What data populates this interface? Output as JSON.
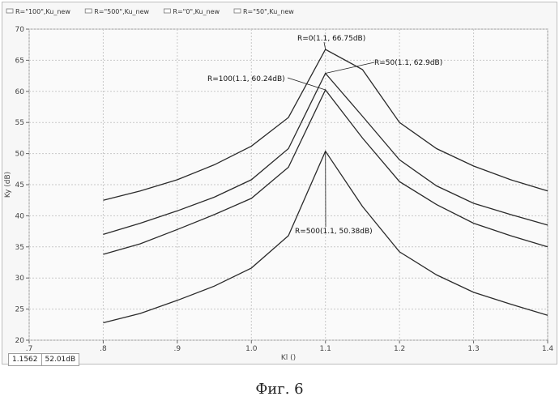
{
  "chart_data": {
    "type": "line",
    "xlabel": "Kl ()",
    "ylabel": "Ky (dB)",
    "xlim": [
      0.7,
      1.4
    ],
    "ylim": [
      20,
      70
    ],
    "x_ticks": [
      ".7",
      ".8",
      ".9",
      "1.0",
      "1.1",
      "1.2",
      "1.3",
      "1.4"
    ],
    "y_ticks": [
      "20",
      "25",
      "30",
      "35",
      "40",
      "45",
      "50",
      "55",
      "60",
      "65",
      "70"
    ],
    "grid": true,
    "legend_position": "top",
    "series": [
      {
        "name": "R=\"100\",Ku_new",
        "x": [
          0.8,
          0.85,
          0.9,
          0.95,
          1.0,
          1.05,
          1.1,
          1.15,
          1.2,
          1.25,
          1.3,
          1.35,
          1.4
        ],
        "y": [
          33.8,
          35.5,
          37.8,
          40.2,
          42.8,
          47.8,
          60.24,
          52.5,
          45.5,
          41.8,
          38.8,
          36.8,
          35.0
        ]
      },
      {
        "name": "R=\"500\",Ku_new",
        "x": [
          0.8,
          0.85,
          0.9,
          0.95,
          1.0,
          1.05,
          1.1,
          1.15,
          1.2,
          1.25,
          1.3,
          1.35,
          1.4
        ],
        "y": [
          22.8,
          24.3,
          26.4,
          28.7,
          31.6,
          36.8,
          50.38,
          41.5,
          34.2,
          30.5,
          27.7,
          25.8,
          24.0
        ]
      },
      {
        "name": "R=\"0\",Ku_new",
        "x": [
          0.8,
          0.85,
          0.9,
          0.95,
          1.0,
          1.05,
          1.1,
          1.15,
          1.2,
          1.25,
          1.3,
          1.35,
          1.4
        ],
        "y": [
          42.5,
          44.0,
          45.8,
          48.2,
          51.2,
          55.8,
          66.75,
          63.5,
          55.0,
          50.8,
          48.0,
          45.8,
          44.0
        ]
      },
      {
        "name": "R=\"50\",Ku_new",
        "x": [
          0.8,
          0.85,
          0.9,
          0.95,
          1.0,
          1.05,
          1.1,
          1.15,
          1.2,
          1.25,
          1.3,
          1.35,
          1.4
        ],
        "y": [
          37.0,
          38.8,
          40.8,
          43.0,
          45.8,
          50.8,
          62.9,
          56.0,
          49.0,
          44.8,
          42.0,
          40.2,
          38.5
        ]
      }
    ],
    "annotations": [
      {
        "text": "R=0(1.1, 66.75dB)",
        "x": 1.1,
        "y": 66.75
      },
      {
        "text": "R=50(1.1, 62.9dB)",
        "x": 1.1,
        "y": 62.9
      },
      {
        "text": "R=100(1.1, 60.24dB)",
        "x": 1.1,
        "y": 60.24
      },
      {
        "text": "R=500(1.1, 50.38dB)",
        "x": 1.1,
        "y": 50.38
      }
    ]
  },
  "readout": {
    "x_value": "1.1562",
    "y_value": "52.01dB"
  },
  "figure_caption": "Фиг. 6",
  "colors": {
    "line": "#2a2a2a",
    "grid": "#c8c8c8",
    "background": "#f7f7f7"
  }
}
